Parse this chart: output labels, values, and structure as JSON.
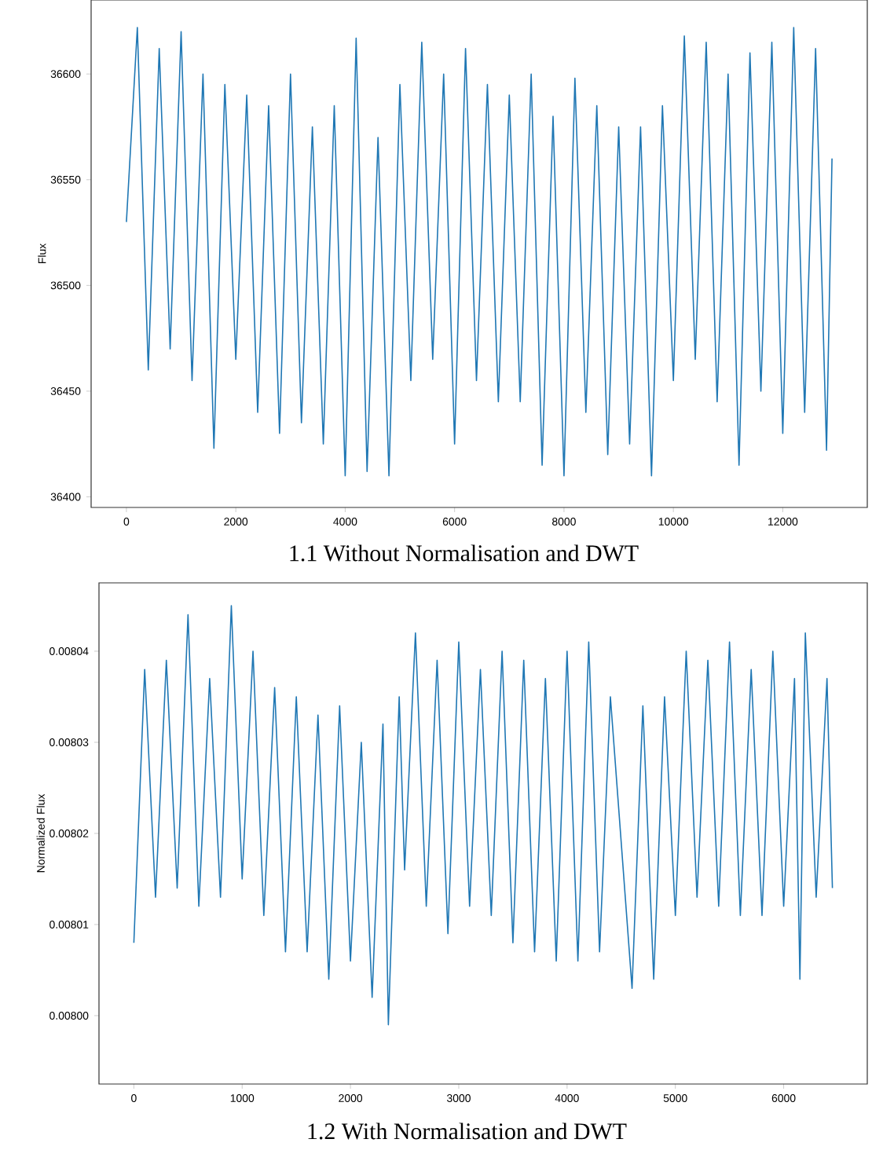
{
  "chart_data": [
    {
      "type": "line",
      "title": "1.1 Without Normalisation and DWT",
      "ylabel": "Flux",
      "color": "#1f77b4",
      "x": [
        0,
        200,
        400,
        600,
        800,
        1000,
        1200,
        1400,
        1600,
        1800,
        2000,
        2200,
        2400,
        2600,
        2800,
        3000,
        3200,
        3400,
        3600,
        3800,
        4000,
        4200,
        4400,
        4600,
        4800,
        5000,
        5200,
        5400,
        5600,
        5800,
        6000,
        6200,
        6400,
        6600,
        6800,
        7000,
        7200,
        7400,
        7600,
        7800,
        8000,
        8200,
        8400,
        8600,
        8800,
        9000,
        9200,
        9400,
        9600,
        9800,
        10000,
        10200,
        10400,
        10600,
        10800,
        11000,
        11200,
        11400,
        11600,
        11800,
        12000,
        12200,
        12400,
        12600,
        12800,
        12900
      ],
      "values": [
        36530,
        36622,
        36460,
        36612,
        36470,
        36620,
        36455,
        36600,
        36423,
        36595,
        36465,
        36590,
        36440,
        36585,
        36430,
        36600,
        36435,
        36575,
        36425,
        36585,
        36410,
        36617,
        36412,
        36570,
        36410,
        36595,
        36455,
        36615,
        36465,
        36600,
        36425,
        36612,
        36455,
        36595,
        36445,
        36590,
        36445,
        36600,
        36415,
        36580,
        36410,
        36598,
        36440,
        36585,
        36420,
        36575,
        36425,
        36575,
        36410,
        36585,
        36455,
        36618,
        36465,
        36615,
        36445,
        36600,
        36415,
        36610,
        36450,
        36615,
        36430,
        36622,
        36440,
        36612,
        36422,
        36560
      ],
      "xlim": [
        -645,
        13545
      ],
      "ylim": [
        36395,
        36635
      ],
      "xticks": [
        0,
        2000,
        4000,
        6000,
        8000,
        10000,
        12000
      ],
      "yticks": [
        36400,
        36450,
        36500,
        36550,
        36600
      ]
    },
    {
      "type": "line",
      "title": "1.2 With Normalisation and DWT",
      "ylabel": "Normalized Flux",
      "color": "#1f77b4",
      "x": [
        0,
        100,
        200,
        300,
        400,
        500,
        600,
        700,
        800,
        900,
        1000,
        1100,
        1200,
        1300,
        1400,
        1500,
        1600,
        1700,
        1800,
        1900,
        2000,
        2100,
        2200,
        2300,
        2350,
        2450,
        2500,
        2600,
        2700,
        2800,
        2900,
        3000,
        3100,
        3200,
        3300,
        3400,
        3500,
        3600,
        3700,
        3800,
        3900,
        4000,
        4100,
        4200,
        4300,
        4400,
        4600,
        4700,
        4800,
        4900,
        5000,
        5100,
        5200,
        5300,
        5400,
        5500,
        5600,
        5700,
        5800,
        5900,
        6000,
        6100,
        6150,
        6200,
        6300,
        6400,
        6450
      ],
      "values": [
        0.008008,
        0.008038,
        0.008013,
        0.008039,
        0.008014,
        0.008044,
        0.008012,
        0.008037,
        0.008013,
        0.008045,
        0.008015,
        0.00804,
        0.008011,
        0.008036,
        0.008007,
        0.008035,
        0.008007,
        0.008033,
        0.008004,
        0.008034,
        0.008006,
        0.00803,
        0.008002,
        0.008032,
        0.007999,
        0.008035,
        0.008016,
        0.008042,
        0.008012,
        0.008039,
        0.008009,
        0.008041,
        0.008012,
        0.008038,
        0.008011,
        0.00804,
        0.008008,
        0.008039,
        0.008007,
        0.008037,
        0.008006,
        0.00804,
        0.008006,
        0.008041,
        0.008007,
        0.008035,
        0.008003,
        0.008034,
        0.008004,
        0.008035,
        0.008011,
        0.00804,
        0.008013,
        0.008039,
        0.008012,
        0.008041,
        0.008011,
        0.008038,
        0.008011,
        0.00804,
        0.008012,
        0.008037,
        0.008004,
        0.008042,
        0.008013,
        0.008037,
        0.008014
      ],
      "xlim": [
        -322,
        6772
      ],
      "ylim": [
        0.0079925,
        0.0080475
      ],
      "xticks": [
        0,
        1000,
        2000,
        3000,
        4000,
        5000,
        6000
      ],
      "yticks": [
        {
          "value": 0.008,
          "label": "0.00800"
        },
        {
          "value": 0.00801,
          "label": "0.00801"
        },
        {
          "value": 0.00802,
          "label": "0.00802"
        },
        {
          "value": 0.00803,
          "label": "0.00803"
        },
        {
          "value": 0.00804,
          "label": "0.00804"
        }
      ]
    }
  ]
}
